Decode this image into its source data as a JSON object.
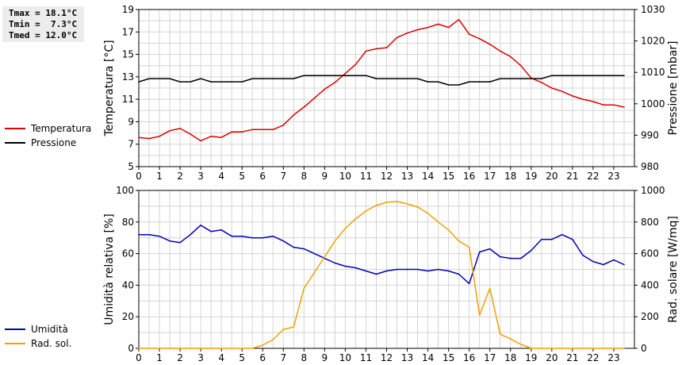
{
  "stats": {
    "tmax": "Tmax = 18.1°C",
    "tmin": "Tmin =  7.3°C",
    "tmed": "Tmed = 12.0°C"
  },
  "colors": {
    "temperature": "#dd0000",
    "pressure": "#000000",
    "humidity": "#0000bb",
    "radiation": "#f0a000",
    "grid": "#d4d4d4"
  },
  "chart_data": [
    {
      "type": "line",
      "ylabel": "Temperatura [°C]",
      "y2label": "Pressione [mbar]",
      "xlim": [
        0,
        24
      ],
      "ylim": [
        5,
        19
      ],
      "y2lim": [
        980,
        1030
      ],
      "x_ticks": [
        0,
        1,
        2,
        3,
        4,
        5,
        6,
        7,
        8,
        9,
        10,
        11,
        12,
        13,
        14,
        15,
        16,
        17,
        18,
        19,
        20,
        21,
        22,
        23
      ],
      "y_ticks": [
        5,
        7,
        9,
        11,
        13,
        15,
        17,
        19
      ],
      "y2_ticks": [
        980,
        990,
        1000,
        1010,
        1020,
        1030
      ],
      "grid": true,
      "legend_position": "left",
      "series": [
        {
          "name": "Temperatura",
          "axis": "left",
          "color": "#dd0000",
          "x": [
            0,
            0.5,
            1,
            1.5,
            2,
            2.5,
            3,
            3.5,
            4,
            4.5,
            5,
            5.5,
            6,
            6.5,
            7,
            7.5,
            8,
            8.5,
            9,
            9.5,
            10,
            10.5,
            11,
            11.5,
            12,
            12.5,
            13,
            13.5,
            14,
            14.5,
            15,
            15.5,
            16,
            16.5,
            17,
            17.5,
            18,
            18.5,
            19,
            19.5,
            20,
            20.5,
            21,
            21.5,
            22,
            22.5,
            23,
            23.5
          ],
          "values": [
            7.6,
            7.5,
            7.7,
            8.2,
            8.4,
            7.9,
            7.3,
            7.7,
            7.6,
            8.1,
            8.1,
            8.3,
            8.3,
            8.3,
            8.7,
            9.6,
            10.3,
            11.1,
            11.9,
            12.5,
            13.3,
            14.1,
            15.3,
            15.5,
            15.6,
            16.5,
            16.9,
            17.2,
            17.4,
            17.7,
            17.4,
            18.1,
            16.8,
            16.4,
            15.9,
            15.3,
            14.8,
            14.0,
            12.9,
            12.5,
            12.0,
            11.7,
            11.3,
            11.0,
            10.8,
            10.5,
            10.5,
            10.3
          ]
        },
        {
          "name": "Pressione",
          "axis": "right",
          "color": "#000000",
          "x": [
            0,
            0.5,
            1,
            1.5,
            2,
            2.5,
            3,
            3.5,
            4,
            4.5,
            5,
            5.5,
            6,
            6.5,
            7,
            7.5,
            8,
            8.5,
            9,
            9.5,
            10,
            10.5,
            11,
            11.5,
            12,
            12.5,
            13,
            13.5,
            14,
            14.5,
            15,
            15.5,
            16,
            16.5,
            17,
            17.5,
            18,
            18.5,
            19,
            19.5,
            20,
            20.5,
            21,
            21.5,
            22,
            22.5,
            23,
            23.5
          ],
          "values": [
            1007,
            1008,
            1008,
            1008,
            1007,
            1007,
            1008,
            1007,
            1007,
            1007,
            1007,
            1008,
            1008,
            1008,
            1008,
            1008,
            1009,
            1009,
            1009,
            1009,
            1009,
            1009,
            1009,
            1008,
            1008,
            1008,
            1008,
            1008,
            1007,
            1007,
            1006,
            1006,
            1007,
            1007,
            1007,
            1008,
            1008,
            1008,
            1008,
            1008,
            1009,
            1009,
            1009,
            1009,
            1009,
            1009,
            1009,
            1009
          ]
        }
      ]
    },
    {
      "type": "line",
      "ylabel": "Umidità relativa [%]",
      "y2label": "Rad. solare [W/mq]",
      "xlim": [
        0,
        24
      ],
      "ylim": [
        0,
        100
      ],
      "y2lim": [
        0,
        1000
      ],
      "x_ticks": [
        0,
        1,
        2,
        3,
        4,
        5,
        6,
        7,
        8,
        9,
        10,
        11,
        12,
        13,
        14,
        15,
        16,
        17,
        18,
        19,
        20,
        21,
        22,
        23
      ],
      "y_ticks": [
        0,
        20,
        40,
        60,
        80,
        100
      ],
      "y2_ticks": [
        0,
        200,
        400,
        600,
        800,
        1000
      ],
      "grid": true,
      "legend_position": "left",
      "series": [
        {
          "name": "Umidità",
          "axis": "left",
          "color": "#0000bb",
          "x": [
            0,
            0.5,
            1,
            1.5,
            2,
            2.5,
            3,
            3.5,
            4,
            4.5,
            5,
            5.5,
            6,
            6.5,
            7,
            7.5,
            8,
            8.5,
            9,
            9.5,
            10,
            10.5,
            11,
            11.5,
            12,
            12.5,
            13,
            13.5,
            14,
            14.5,
            15,
            15.5,
            16,
            16.5,
            17,
            17.5,
            18,
            18.5,
            19,
            19.5,
            20,
            20.5,
            21,
            21.5,
            22,
            22.5,
            23,
            23.5
          ],
          "values": [
            72,
            72,
            71,
            68,
            67,
            72,
            78,
            74,
            75,
            71,
            71,
            70,
            70,
            71,
            68,
            64,
            63,
            60,
            57,
            54,
            52,
            51,
            49,
            47,
            49,
            50,
            50,
            50,
            49,
            50,
            49,
            47,
            41,
            61,
            63,
            58,
            57,
            57,
            62,
            69,
            69,
            72,
            69,
            59,
            55,
            53,
            56,
            53
          ]
        },
        {
          "name": "Rad. sol.",
          "axis": "right",
          "color": "#f0a000",
          "x": [
            0,
            0.5,
            1,
            1.5,
            2,
            2.5,
            3,
            3.5,
            4,
            4.5,
            5,
            5.5,
            6,
            6.5,
            7,
            7.5,
            8,
            8.5,
            9,
            9.5,
            10,
            10.5,
            11,
            11.5,
            12,
            12.5,
            13,
            13.5,
            14,
            14.5,
            15,
            15.5,
            16,
            16.5,
            17,
            17.5,
            18,
            18.5,
            19,
            19.5,
            20,
            20.5,
            21,
            21.5,
            22,
            22.5,
            23,
            23.5
          ],
          "values": [
            0,
            0,
            0,
            0,
            0,
            0,
            0,
            0,
            0,
            0,
            0,
            0,
            20,
            55,
            120,
            135,
            380,
            480,
            580,
            680,
            760,
            820,
            870,
            905,
            925,
            930,
            915,
            895,
            855,
            800,
            750,
            680,
            640,
            210,
            380,
            90,
            60,
            25,
            0,
            0,
            0,
            0,
            0,
            0,
            0,
            0,
            0,
            0
          ]
        }
      ]
    }
  ]
}
